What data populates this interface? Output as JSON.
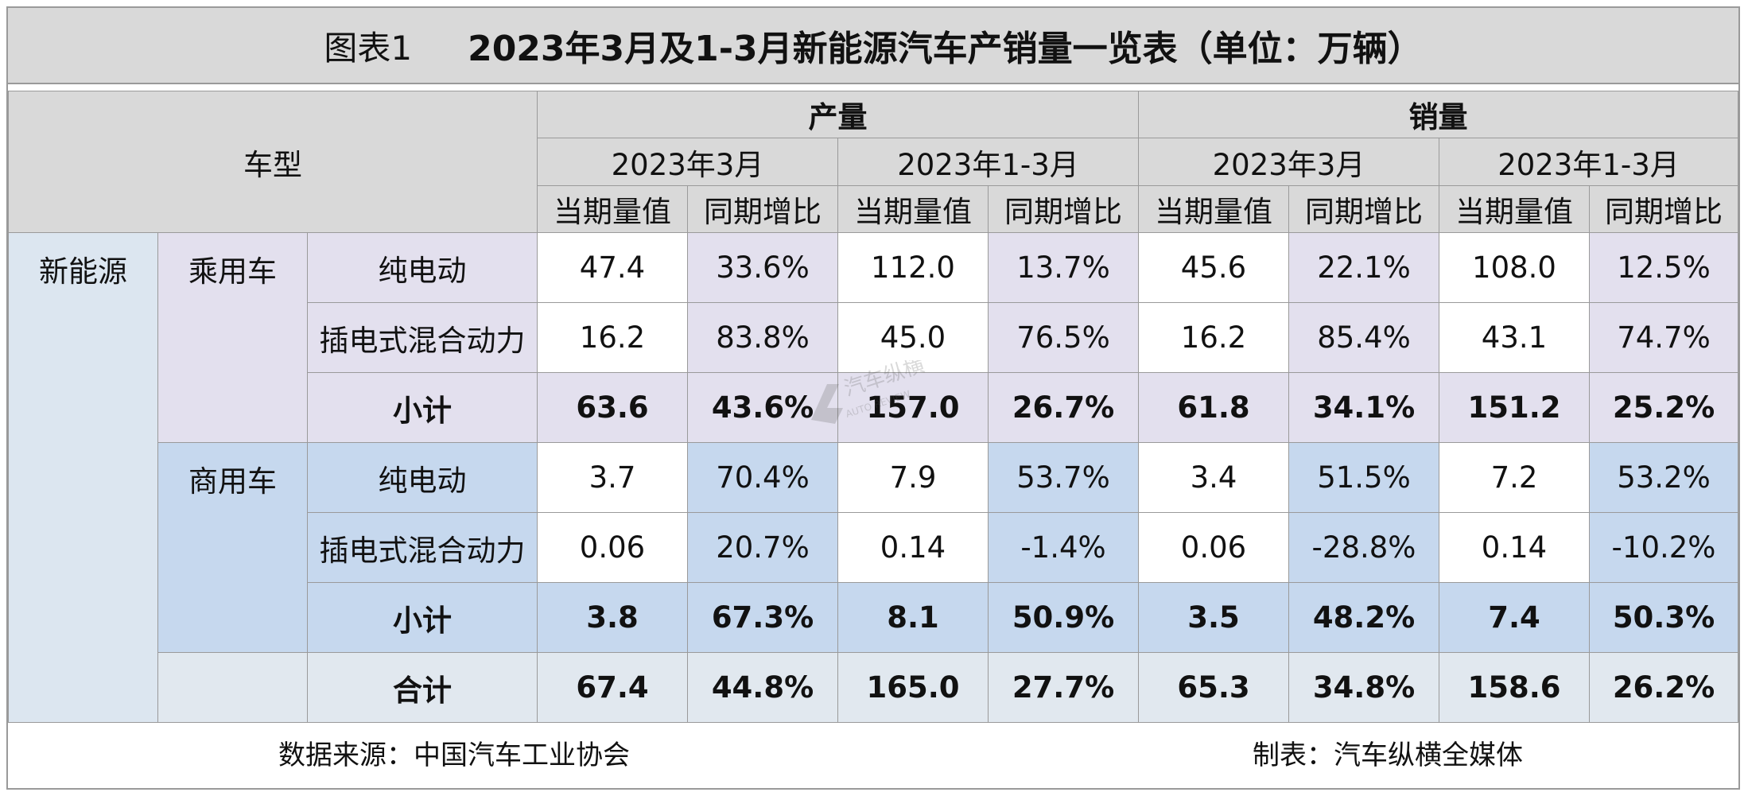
{
  "title": {
    "number": "图表1",
    "text": "2023年3月及1-3月新能源汽车产销量一览表（单位：万辆）"
  },
  "header": {
    "vehicle_type": "车型",
    "production": "产量",
    "sales": "销量",
    "period_march": "2023年3月",
    "period_q1": "2023年1-3月",
    "current_value": "当期量值",
    "yoy": "同期增比"
  },
  "row_labels": {
    "nev": "新能源",
    "passenger": "乘用车",
    "commercial": "商用车",
    "bev": "纯电动",
    "phev": "插电式混合动力",
    "subtotal": "小计",
    "total": "合计"
  },
  "rows": {
    "passenger_bev": [
      "47.4",
      "33.6%",
      "112.0",
      "13.7%",
      "45.6",
      "22.1%",
      "108.0",
      "12.5%"
    ],
    "passenger_phev": [
      "16.2",
      "83.8%",
      "45.0",
      "76.5%",
      "16.2",
      "85.4%",
      "43.1",
      "74.7%"
    ],
    "passenger_subtotal": [
      "63.6",
      "43.6%",
      "157.0",
      "26.7%",
      "61.8",
      "34.1%",
      "151.2",
      "25.2%"
    ],
    "commercial_bev": [
      "3.7",
      "70.4%",
      "7.9",
      "53.7%",
      "3.4",
      "51.5%",
      "7.2",
      "53.2%"
    ],
    "commercial_phev": [
      "0.06",
      "20.7%",
      "0.14",
      "-1.4%",
      "0.06",
      "-28.8%",
      "0.14",
      "-10.2%"
    ],
    "commercial_subtotal": [
      "3.8",
      "67.3%",
      "8.1",
      "50.9%",
      "3.5",
      "48.2%",
      "7.4",
      "50.3%"
    ],
    "total": [
      "67.4",
      "44.8%",
      "165.0",
      "27.7%",
      "65.3",
      "34.8%",
      "158.6",
      "26.2%"
    ]
  },
  "footer": {
    "source": "数据来源：中国汽车工业协会",
    "maker": "制表：汽车纵横全媒体"
  },
  "watermark": {
    "logo": "汽车纵横 AUTO REVIEW"
  },
  "colors": {
    "header_gray": "#d9d9d9",
    "passenger_lavender": "#e3e0ee",
    "commercial_blue": "#c6d8ee",
    "label_light_blue": "#dce6f0",
    "border_gray": "#9a9a9a"
  }
}
